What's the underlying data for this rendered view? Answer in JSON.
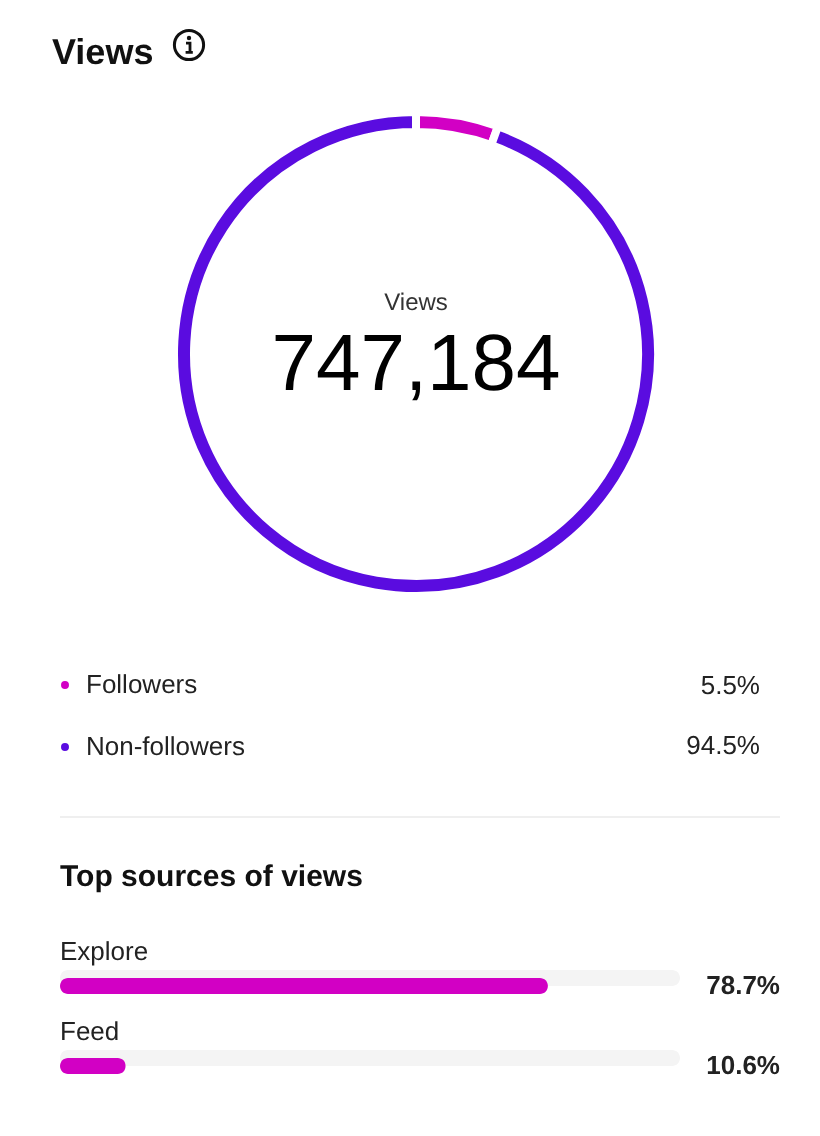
{
  "chart_data": [
    {
      "type": "donut",
      "title": "Views",
      "annotations": [
        "Views",
        "747,184"
      ],
      "categories": [
        "Followers",
        "Non-followers"
      ],
      "values": [
        5.5,
        94.5
      ],
      "colors": [
        "#d200c4",
        "#5a0ce0"
      ],
      "value_labels": [
        "5.5%",
        "94.5%"
      ],
      "legend": "bottom"
    },
    {
      "type": "bar",
      "orientation": "horizontal",
      "title": "Top sources of views",
      "categories": [
        "Explore",
        "Feed"
      ],
      "values": [
        78.7,
        10.6
      ],
      "color": "#d200c4",
      "xlim": [
        0,
        100
      ],
      "value_labels": [
        "78.7%",
        "10.6%"
      ]
    }
  ]
}
